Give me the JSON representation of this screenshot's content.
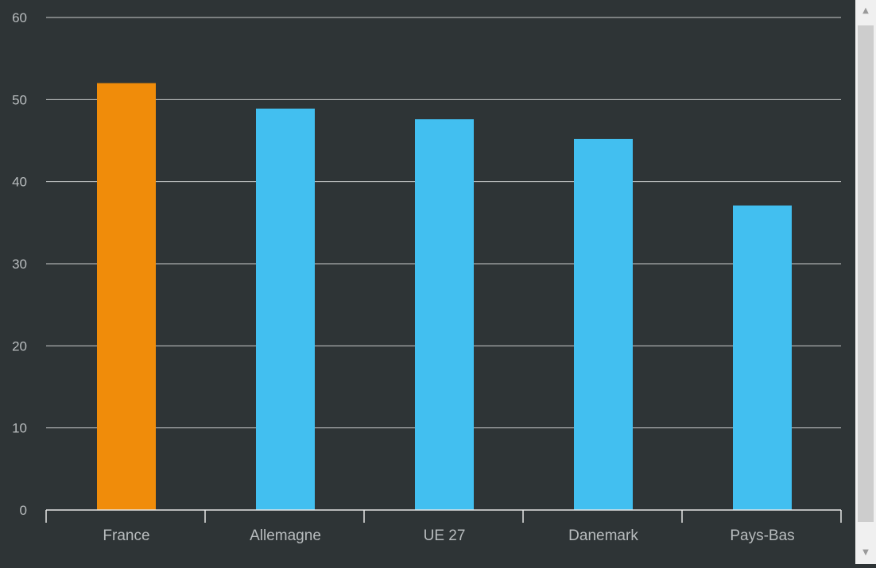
{
  "chart_data": {
    "type": "bar",
    "categories": [
      "France",
      "Allemagne",
      "UE 27",
      "Danemark",
      "Pays-Bas"
    ],
    "values": [
      52,
      48.9,
      47.6,
      45.2,
      37.1
    ],
    "ylim": [
      0,
      60
    ],
    "yticks": [
      0,
      10,
      20,
      30,
      40,
      50,
      60
    ],
    "title": "",
    "xlabel": "",
    "ylabel": "",
    "grid": true,
    "highlight_index": 0,
    "colors": {
      "highlight": "#f08c0a",
      "bar": "#42bff0",
      "grid": "#c9cbcc",
      "axis": "#e6e6e6",
      "background": "#2e3436"
    }
  },
  "scrollbar": {
    "up_icon": "triangle-up-icon",
    "down_icon": "triangle-down-icon"
  }
}
